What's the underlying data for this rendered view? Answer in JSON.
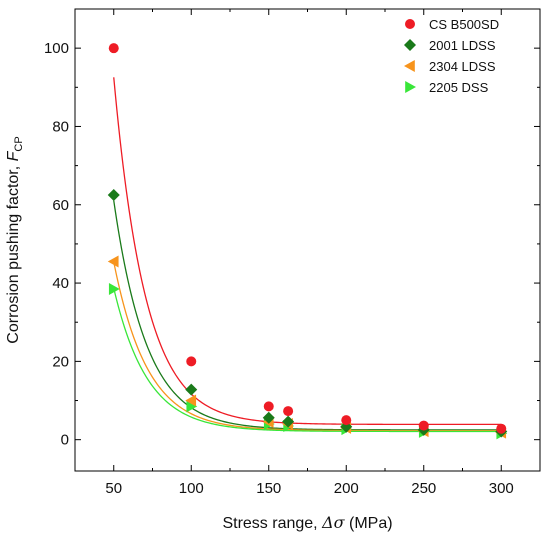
{
  "chart_data": {
    "type": "scatter",
    "xlabel": "Stress range, Δσ (MPa)",
    "xlabel_main": "Stress range, ",
    "xlabel_symbol": "Δσ",
    "xlabel_unit": " (MPa)",
    "ylabel": "Corrosion pushing factor, F_CP",
    "ylabel_main": "Corrosion pushing factor, ",
    "ylabel_symbol": "F",
    "ylabel_subscript": "CP",
    "xlim": [
      25,
      325
    ],
    "ylim": [
      -8,
      110
    ],
    "x_ticks": [
      50,
      100,
      150,
      200,
      250,
      300
    ],
    "y_ticks": [
      0,
      20,
      40,
      60,
      80,
      100
    ],
    "x_tick_labels": [
      "50",
      "100",
      "150",
      "200",
      "250",
      "300"
    ],
    "y_tick_labels": [
      "0",
      "20",
      "40",
      "60",
      "80",
      "100"
    ],
    "grid": false,
    "legend_position": "top-right",
    "series": [
      {
        "name": "CS B500SD",
        "marker": "circle",
        "color": "#ee1c25",
        "x": [
          50,
          100,
          150,
          162.5,
          200,
          250,
          300
        ],
        "y": [
          100,
          20,
          8.5,
          7.3,
          5,
          3.6,
          2.8
        ],
        "fit": {
          "a": 3.9,
          "b": 1012,
          "k": 0.0487
        }
      },
      {
        "name": "2001 LDSS",
        "marker": "diamond",
        "color": "#1a7a1a",
        "x": [
          50,
          100,
          150,
          162.5,
          200,
          250,
          300
        ],
        "y": [
          62.5,
          12.8,
          5.6,
          4.6,
          3.3,
          2.5,
          2.1
        ],
        "fit": {
          "a": 2.5,
          "b": 605,
          "k": 0.0467
        }
      },
      {
        "name": "2304 LDSS",
        "marker": "triangle-left",
        "color": "#f7941d",
        "x": [
          50,
          100,
          150,
          162.5,
          200,
          250,
          300
        ],
        "y": [
          45.5,
          10,
          4.5,
          4,
          3,
          2.2,
          1.8
        ],
        "fit": {
          "a": 2.3,
          "b": 430,
          "k": 0.046
        }
      },
      {
        "name": "2205 DSS",
        "marker": "triangle-right",
        "color": "#39e639",
        "x": [
          50,
          100,
          150,
          162.5,
          200,
          250,
          300
        ],
        "y": [
          38.5,
          8.5,
          4,
          3.5,
          2.7,
          2,
          1.6
        ],
        "fit": {
          "a": 2.1,
          "b": 365,
          "k": 0.046
        }
      }
    ]
  }
}
